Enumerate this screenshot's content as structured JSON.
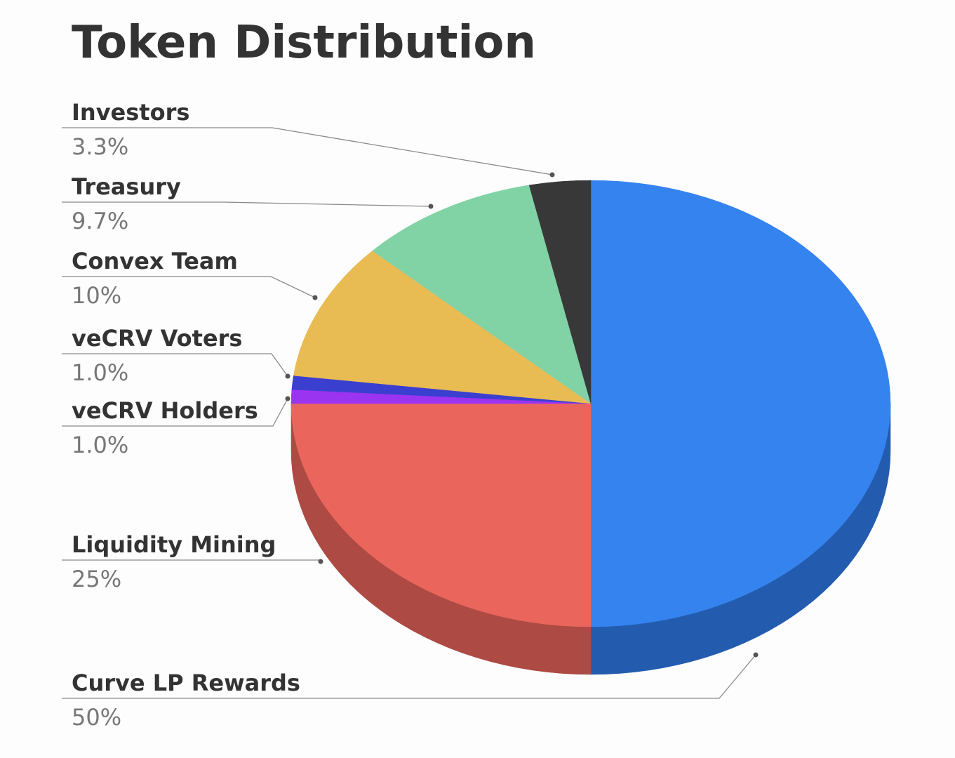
{
  "chart_data": {
    "type": "pie",
    "title": "Token Distribution",
    "slices": [
      {
        "name": "Curve LP Rewards",
        "value": 50,
        "label": "50%",
        "color": "#3583ef",
        "side": "#235caf"
      },
      {
        "name": "Liquidity Mining",
        "value": 25,
        "label": "25%",
        "color": "#ea665d",
        "side": "#ad4a43"
      },
      {
        "name": "veCRV Holders",
        "value": 1.0,
        "label": "1.0%",
        "color": "#9b34f1",
        "side": "#6e24ab"
      },
      {
        "name": "veCRV Voters",
        "value": 1.0,
        "label": "1.0%",
        "color": "#3b3fcf",
        "side": "#2a2d93"
      },
      {
        "name": "Convex Team",
        "value": 10,
        "label": "10%",
        "color": "#e9bb53",
        "side": "#a8863b"
      },
      {
        "name": "Treasury",
        "value": 9.7,
        "label": "9.7%",
        "color": "#81d3a5",
        "side": "#5c9876"
      },
      {
        "name": "Investors",
        "value": 3.3,
        "label": "3.3%",
        "color": "#383838",
        "side": "#222222"
      }
    ],
    "legend_position": "left",
    "text_color": "#333333",
    "value_color": "#777777",
    "leader_color": "#8a8a8a"
  }
}
